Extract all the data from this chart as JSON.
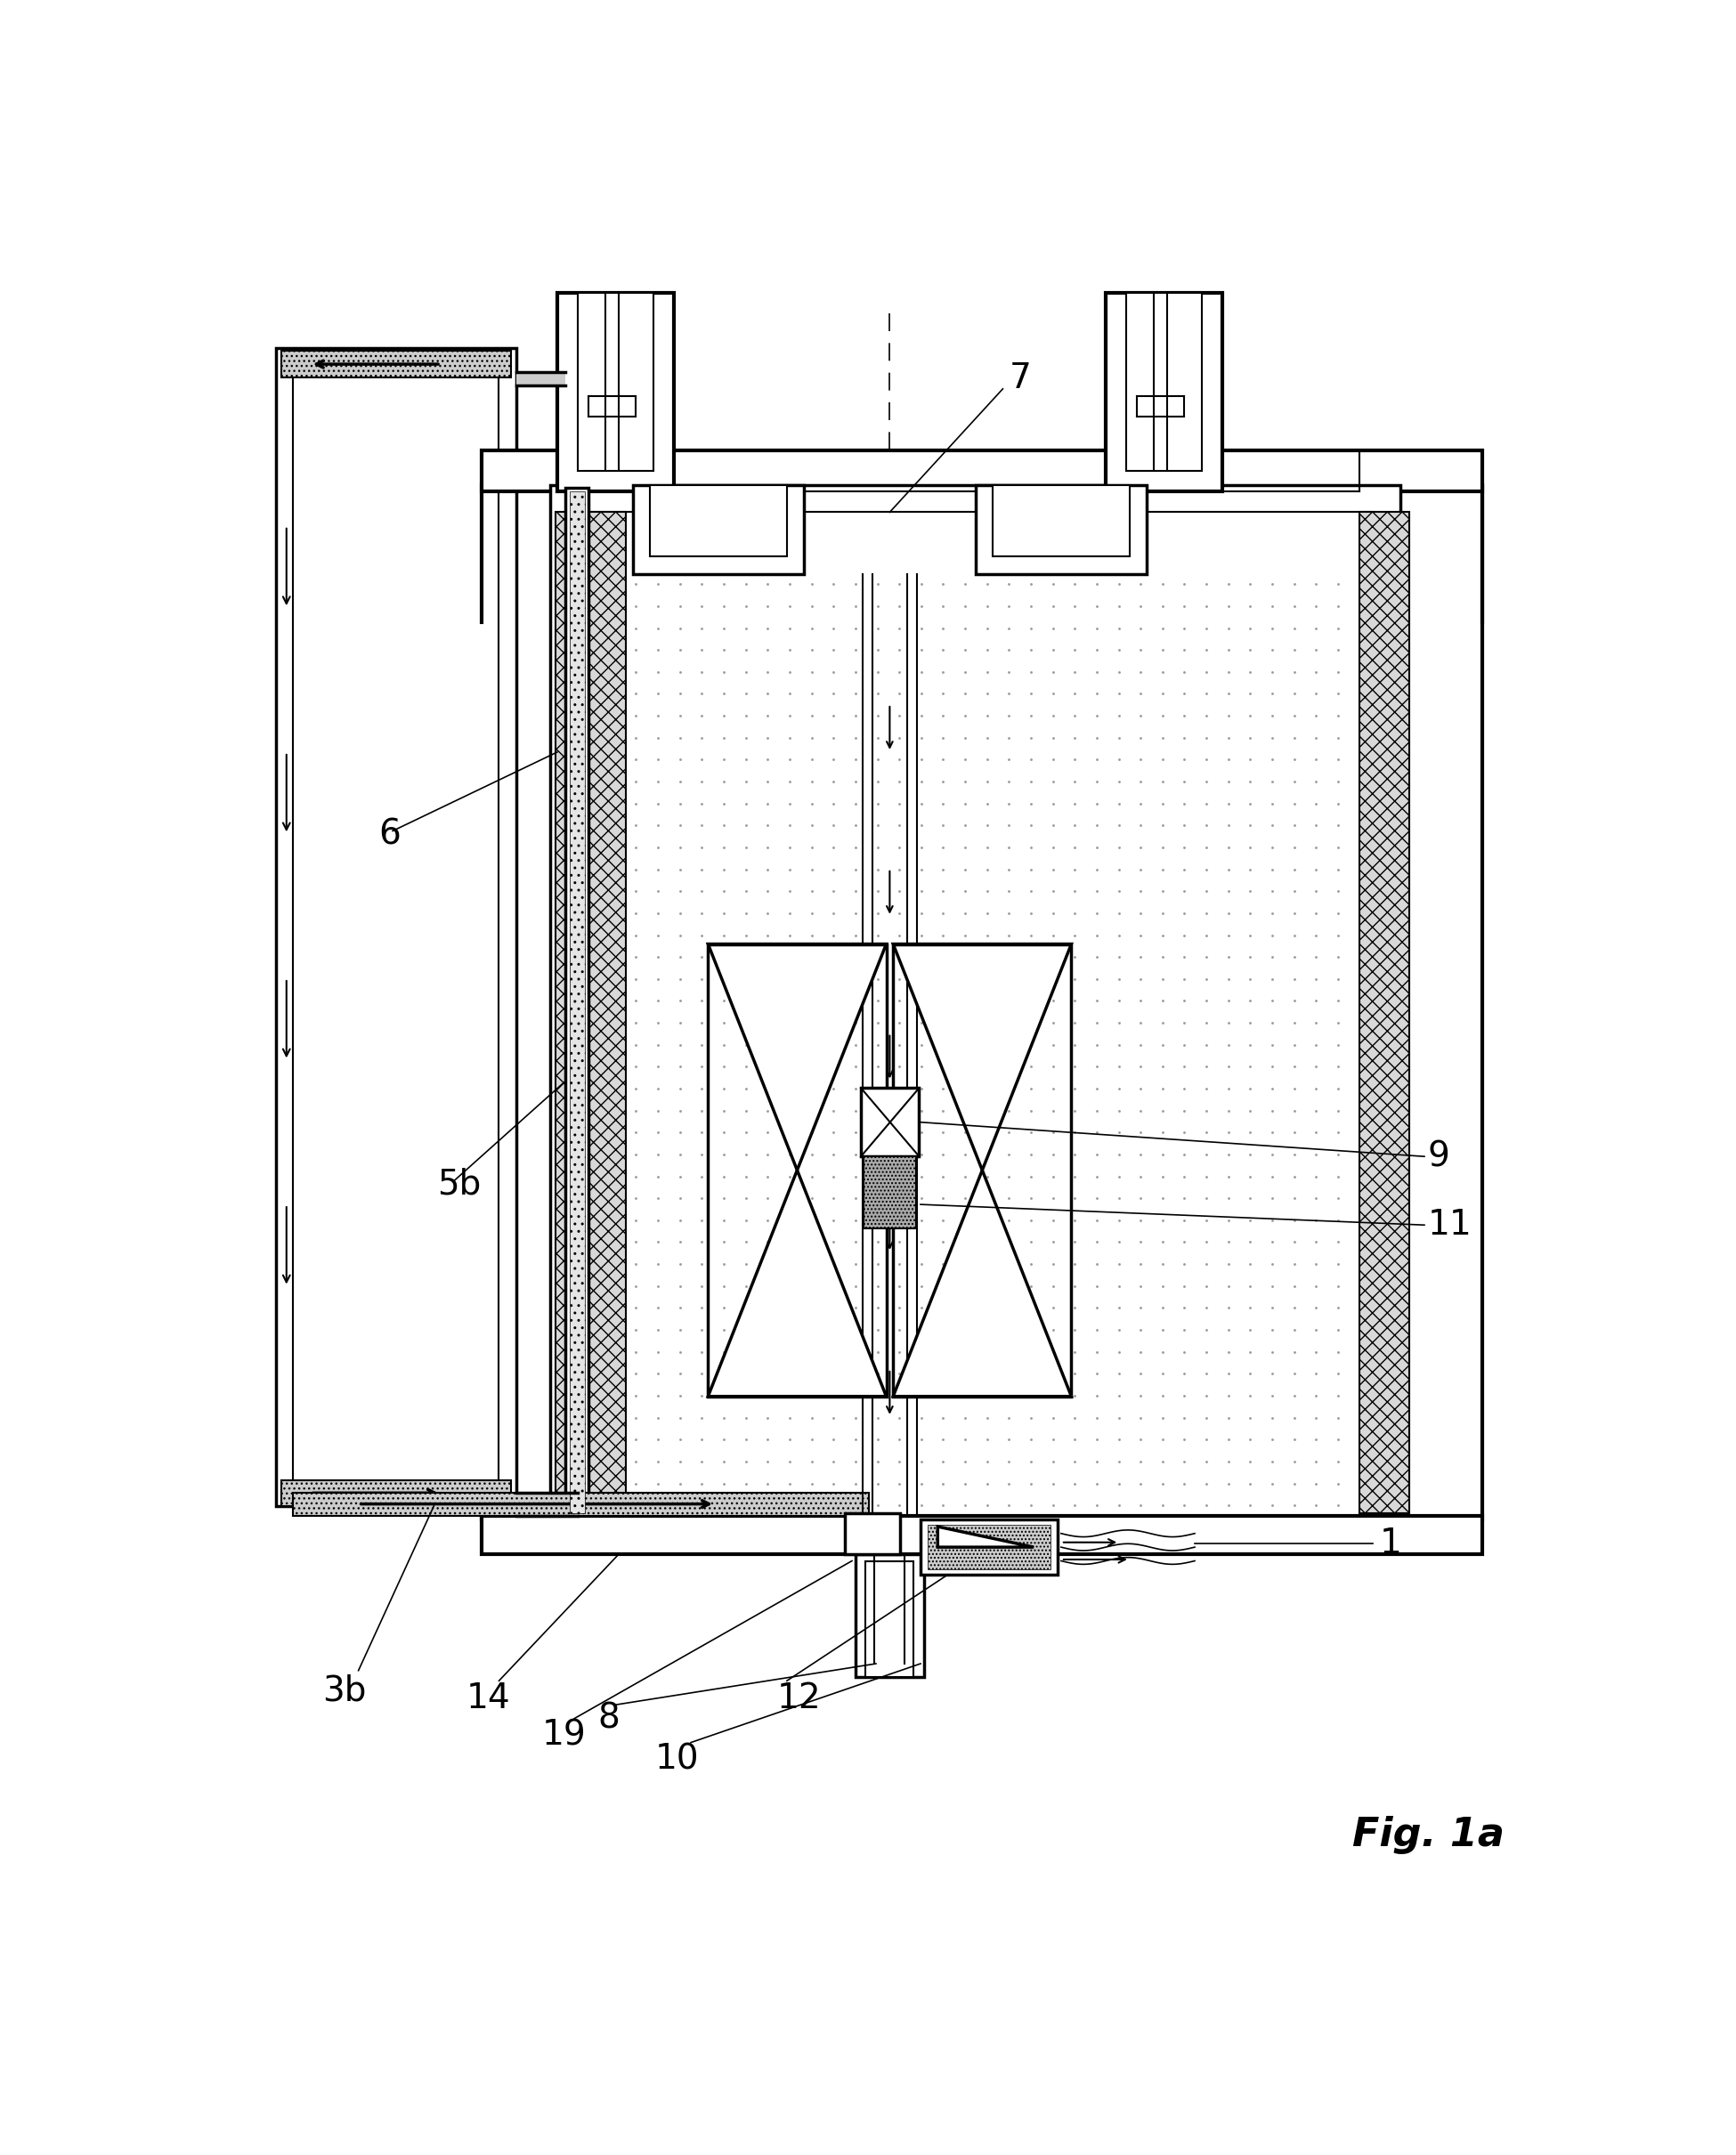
{
  "fig_label": "Fig. 1a",
  "bg_color": "#ffffff",
  "lw_thin": 1.5,
  "lw_med": 2.5,
  "lw_thick": 3.0,
  "label_fs": 28,
  "fig_label_fs": 32
}
